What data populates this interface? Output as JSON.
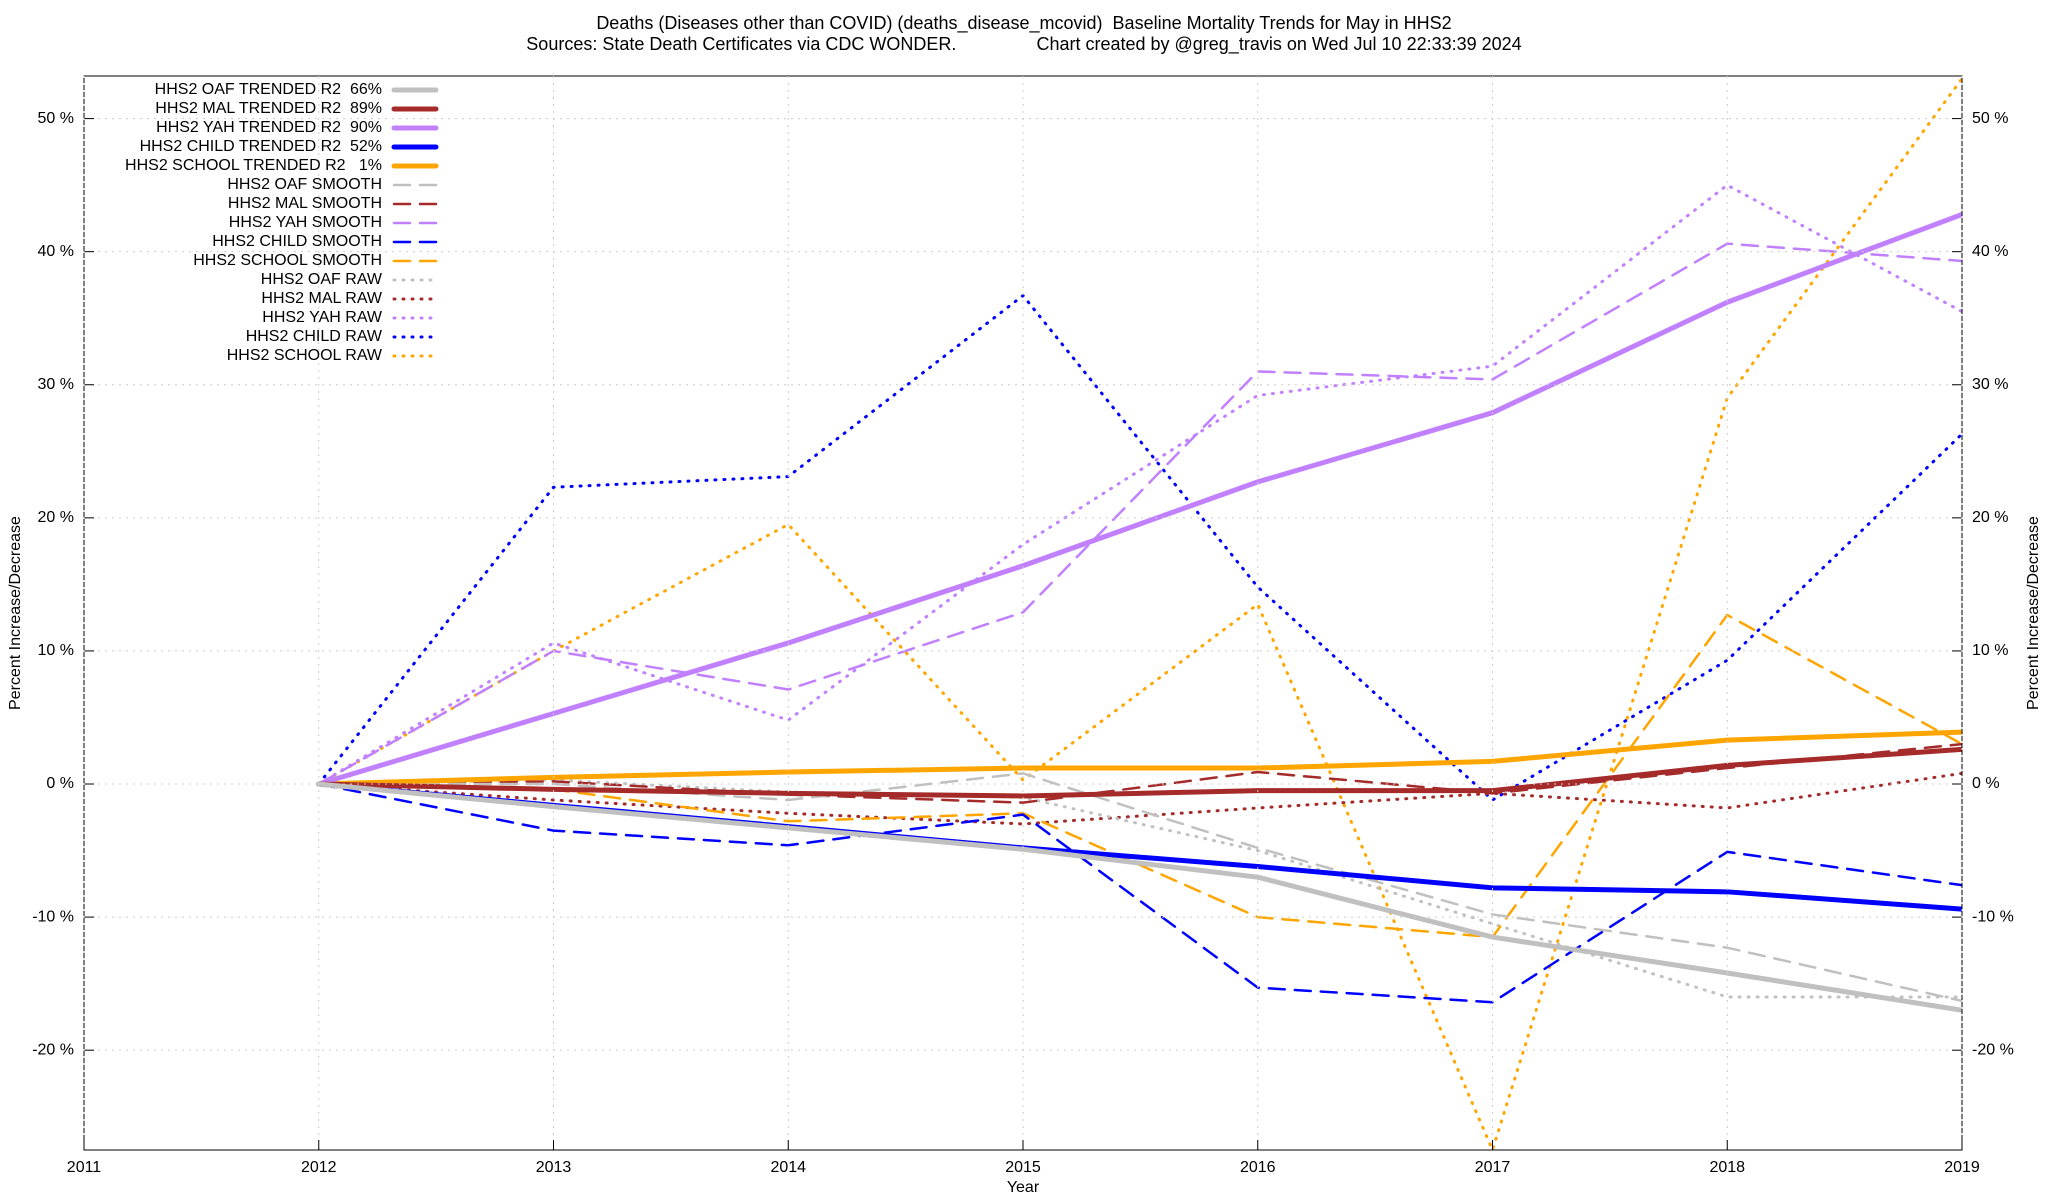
{
  "chart_data": {
    "type": "line",
    "title": "Deaths (Diseases other than COVID) (deaths_disease_mcovid)  Baseline Mortality Trends for May in HHS2",
    "subtitle": "Sources: State Death Certificates via CDC WONDER.                Chart created by @greg_travis on Wed Jul 10 22:33:39 2024",
    "x_label": "Year",
    "y_label": "Percent Increase/Decrease",
    "y2_label": "Percent Increase/Decrease",
    "x": [
      2012,
      2013,
      2014,
      2015,
      2016,
      2017,
      2018,
      2019
    ],
    "xlim": [
      2011,
      2019
    ],
    "xticks": [
      2011,
      2012,
      2013,
      2014,
      2015,
      2016,
      2017,
      2018,
      2019
    ],
    "ylim": [
      -27.5,
      53.2
    ],
    "yticks": [
      {
        "value": -20,
        "label": "-20 %"
      },
      {
        "value": -10,
        "label": "-10 %"
      },
      {
        "value": 0,
        "label": "0 %"
      },
      {
        "value": 10,
        "label": "10 %"
      },
      {
        "value": 20,
        "label": "20 %"
      },
      {
        "value": 30,
        "label": "30 %"
      },
      {
        "value": 40,
        "label": "40 %"
      },
      {
        "value": 50,
        "label": "50 %"
      }
    ],
    "grid": true,
    "legend": "top-left",
    "series": [
      {
        "name": "HHS2 OAF TRENDED R2  66%",
        "color": "#c0c0c0",
        "style": "solid",
        "values": [
          0,
          -1.7,
          -3.3,
          -4.9,
          -7.0,
          -11.5,
          -14.2,
          -17.0
        ]
      },
      {
        "name": "HHS2 MAL TRENDED R2  89%",
        "color": "#a52a2a",
        "style": "solid",
        "values": [
          0,
          -0.4,
          -0.7,
          -0.9,
          -0.5,
          -0.5,
          1.4,
          2.6
        ]
      },
      {
        "name": "HHS2 YAH TRENDED R2  90%",
        "color": "#c080ff",
        "style": "solid",
        "values": [
          0,
          5.3,
          10.6,
          16.4,
          22.7,
          27.9,
          36.2,
          42.8
        ]
      },
      {
        "name": "HHS2 CHILD TRENDED R2  52%",
        "color": "#0000ff",
        "style": "solid",
        "values": [
          0,
          -1.6,
          -3.2,
          -4.8,
          -6.2,
          -7.8,
          -8.1,
          -9.4
        ]
      },
      {
        "name": "HHS2 SCHOOL TRENDED R2   1%",
        "color": "#ffa500",
        "style": "solid",
        "values": [
          0,
          0.5,
          0.9,
          1.2,
          1.2,
          1.7,
          3.3,
          3.9
        ]
      },
      {
        "name": "HHS2 OAF SMOOTH",
        "color": "#c0c0c0",
        "style": "dashed",
        "values": [
          0,
          0.0,
          -1.2,
          0.8,
          -4.8,
          -9.8,
          -12.3,
          -16.3
        ]
      },
      {
        "name": "HHS2 MAL SMOOTH",
        "color": "#a52a2a",
        "style": "dashed",
        "values": [
          0,
          0.2,
          -0.8,
          -1.4,
          0.9,
          -0.7,
          1.2,
          3.0
        ]
      },
      {
        "name": "HHS2 YAH SMOOTH",
        "color": "#c080ff",
        "style": "dashed",
        "values": [
          0,
          10.0,
          7.1,
          12.9,
          31.0,
          30.4,
          40.6,
          39.3
        ]
      },
      {
        "name": "HHS2 CHILD SMOOTH",
        "color": "#0000ff",
        "style": "dashed",
        "values": [
          0,
          -3.5,
          -4.6,
          -2.3,
          -15.3,
          -16.4,
          -5.1,
          -7.6
        ]
      },
      {
        "name": "HHS2 SCHOOL SMOOTH",
        "color": "#ffa500",
        "style": "dashed",
        "values": [
          0,
          -0.4,
          -2.8,
          -2.2,
          -10.0,
          -11.5,
          12.7,
          3.0
        ]
      },
      {
        "name": "HHS2 OAF RAW",
        "color": "#c0c0c0",
        "style": "dotted",
        "values": [
          0,
          0.3,
          -0.6,
          -1.0,
          -5.0,
          -10.5,
          -16.0,
          -16.0
        ]
      },
      {
        "name": "HHS2 MAL RAW",
        "color": "#a52a2a",
        "style": "dotted",
        "values": [
          0,
          -1.2,
          -2.2,
          -3.0,
          -1.8,
          -0.7,
          -1.8,
          0.8
        ]
      },
      {
        "name": "HHS2 YAH RAW",
        "color": "#c080ff",
        "style": "dotted",
        "values": [
          0,
          10.6,
          4.8,
          18.0,
          29.2,
          31.4,
          45.0,
          35.5
        ]
      },
      {
        "name": "HHS2 CHILD RAW",
        "color": "#0000ff",
        "style": "dotted",
        "values": [
          0,
          22.3,
          23.1,
          36.7,
          14.8,
          -1.2,
          9.3,
          26.3
        ]
      },
      {
        "name": "HHS2 SCHOOL RAW",
        "color": "#ffa500",
        "style": "dotted",
        "values": [
          0,
          10.0,
          19.5,
          0.3,
          13.5,
          -27.5,
          29.0,
          53.0
        ]
      }
    ]
  }
}
